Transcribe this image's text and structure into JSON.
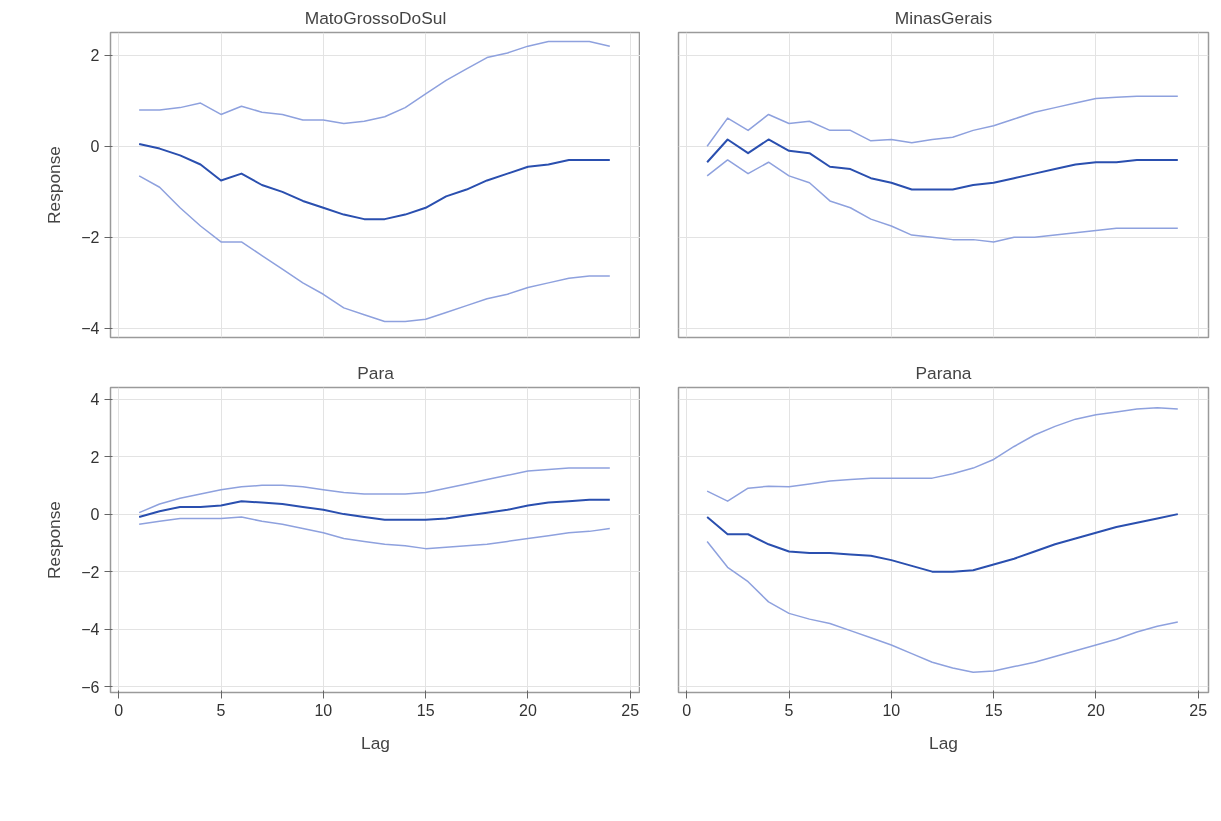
{
  "chart_data": [
    {
      "type": "line",
      "title": "MatoGrossoDoSul",
      "ylabel": "Response",
      "x": [
        1,
        2,
        3,
        4,
        5,
        6,
        7,
        8,
        9,
        10,
        11,
        12,
        13,
        14,
        15,
        16,
        17,
        18,
        19,
        20,
        21,
        22,
        23,
        24
      ],
      "xlim": [
        -0.4,
        25.5
      ],
      "xticks": [
        0,
        5,
        10,
        15,
        20,
        25
      ],
      "ylim": [
        -4.2,
        2.5
      ],
      "yticks": [
        -4,
        -2,
        0,
        2
      ],
      "grid": true,
      "tick_labels": "y",
      "marker": "none",
      "line_style": "solid",
      "series": [
        {
          "color": "#8ea1de",
          "values": [
            0.8,
            0.8,
            0.85,
            0.95,
            0.7,
            0.88,
            0.75,
            0.7,
            0.58,
            0.58,
            0.5,
            0.55,
            0.65,
            0.85,
            1.15,
            1.45,
            1.7,
            1.95,
            2.05,
            2.2,
            2.3,
            2.3,
            2.3,
            2.2
          ]
        },
        {
          "color": "#2a4faf",
          "values": [
            0.05,
            -0.05,
            -0.2,
            -0.4,
            -0.75,
            -0.6,
            -0.85,
            -1.0,
            -1.2,
            -1.35,
            -1.5,
            -1.6,
            -1.6,
            -1.5,
            -1.35,
            -1.1,
            -0.95,
            -0.75,
            -0.6,
            -0.45,
            -0.4,
            -0.3,
            -0.3,
            -0.3
          ]
        },
        {
          "color": "#8ea1de",
          "values": [
            -0.65,
            -0.9,
            -1.35,
            -1.75,
            -2.1,
            -2.1,
            -2.4,
            -2.7,
            -3.0,
            -3.25,
            -3.55,
            -3.7,
            -3.85,
            -3.85,
            -3.8,
            -3.65,
            -3.5,
            -3.35,
            -3.25,
            -3.1,
            -3.0,
            -2.9,
            -2.85,
            -2.85
          ]
        }
      ]
    },
    {
      "type": "line",
      "title": "MinasGerais",
      "x": [
        1,
        2,
        3,
        4,
        5,
        6,
        7,
        8,
        9,
        10,
        11,
        12,
        13,
        14,
        15,
        16,
        17,
        18,
        19,
        20,
        21,
        22,
        23,
        24
      ],
      "xlim": [
        -0.4,
        25.5
      ],
      "xticks": [
        0,
        5,
        10,
        15,
        20,
        25
      ],
      "ylim": [
        -4.2,
        2.5
      ],
      "yticks": [
        -4,
        -2,
        0,
        2
      ],
      "grid": true,
      "tick_labels": false,
      "marker": "none",
      "line_style": "solid",
      "series": [
        {
          "color": "#8ea1de",
          "values": [
            0.0,
            0.62,
            0.35,
            0.7,
            0.5,
            0.55,
            0.35,
            0.35,
            0.12,
            0.15,
            0.08,
            0.15,
            0.2,
            0.35,
            0.45,
            0.6,
            0.75,
            0.85,
            0.95,
            1.05,
            1.08,
            1.1,
            1.1,
            1.1
          ]
        },
        {
          "color": "#2a4faf",
          "values": [
            -0.35,
            0.15,
            -0.15,
            0.15,
            -0.1,
            -0.15,
            -0.45,
            -0.5,
            -0.7,
            -0.8,
            -0.95,
            -0.95,
            -0.95,
            -0.85,
            -0.8,
            -0.7,
            -0.6,
            -0.5,
            -0.4,
            -0.35,
            -0.35,
            -0.3,
            -0.3,
            -0.3
          ]
        },
        {
          "color": "#8ea1de",
          "values": [
            -0.65,
            -0.3,
            -0.6,
            -0.35,
            -0.65,
            -0.8,
            -1.2,
            -1.35,
            -1.6,
            -1.75,
            -1.95,
            -2.0,
            -2.05,
            -2.05,
            -2.1,
            -2.0,
            -2.0,
            -1.95,
            -1.9,
            -1.85,
            -1.8,
            -1.8,
            -1.8,
            -1.8
          ]
        }
      ]
    },
    {
      "type": "line",
      "title": "Para",
      "xlabel": "Lag",
      "ylabel": "Response",
      "x": [
        1,
        2,
        3,
        4,
        5,
        6,
        7,
        8,
        9,
        10,
        11,
        12,
        13,
        14,
        15,
        16,
        17,
        18,
        19,
        20,
        21,
        22,
        23,
        24
      ],
      "xlim": [
        -0.4,
        25.5
      ],
      "xticks": [
        0,
        5,
        10,
        15,
        20,
        25
      ],
      "ylim": [
        -6.2,
        4.4
      ],
      "yticks": [
        -6,
        -4,
        -2,
        0,
        2,
        4
      ],
      "grid": true,
      "marker": "none",
      "line_style": "solid",
      "series": [
        {
          "color": "#8ea1de",
          "values": [
            0.05,
            0.35,
            0.55,
            0.7,
            0.85,
            0.95,
            1.0,
            1.0,
            0.95,
            0.85,
            0.75,
            0.7,
            0.7,
            0.7,
            0.75,
            0.9,
            1.05,
            1.2,
            1.35,
            1.5,
            1.55,
            1.6,
            1.6,
            1.6
          ]
        },
        {
          "color": "#2a4faf",
          "values": [
            -0.1,
            0.1,
            0.25,
            0.25,
            0.3,
            0.45,
            0.4,
            0.35,
            0.25,
            0.15,
            0.0,
            -0.1,
            -0.2,
            -0.2,
            -0.2,
            -0.15,
            -0.05,
            0.05,
            0.15,
            0.3,
            0.4,
            0.45,
            0.5,
            0.5
          ]
        },
        {
          "color": "#8ea1de",
          "values": [
            -0.35,
            -0.25,
            -0.15,
            -0.15,
            -0.15,
            -0.1,
            -0.25,
            -0.35,
            -0.5,
            -0.65,
            -0.85,
            -0.95,
            -1.05,
            -1.1,
            -1.2,
            -1.15,
            -1.1,
            -1.05,
            -0.95,
            -0.85,
            -0.75,
            -0.65,
            -0.6,
            -0.5
          ]
        }
      ]
    },
    {
      "type": "line",
      "title": "Parana",
      "xlabel": "Lag",
      "x": [
        1,
        2,
        3,
        4,
        5,
        6,
        7,
        8,
        9,
        10,
        11,
        12,
        13,
        14,
        15,
        16,
        17,
        18,
        19,
        20,
        21,
        22,
        23,
        24
      ],
      "xlim": [
        -0.4,
        25.5
      ],
      "xticks": [
        0,
        5,
        10,
        15,
        20,
        25
      ],
      "ylim": [
        -6.2,
        4.4
      ],
      "yticks": [
        -6,
        -4,
        -2,
        0,
        2,
        4
      ],
      "grid": true,
      "tick_labels": "x",
      "marker": "none",
      "line_style": "solid",
      "series": [
        {
          "color": "#8ea1de",
          "values": [
            0.8,
            0.45,
            0.9,
            0.97,
            0.95,
            1.05,
            1.15,
            1.2,
            1.25,
            1.25,
            1.25,
            1.25,
            1.4,
            1.6,
            1.9,
            2.35,
            2.75,
            3.05,
            3.3,
            3.45,
            3.55,
            3.65,
            3.7,
            3.65
          ]
        },
        {
          "color": "#2a4faf",
          "values": [
            -0.1,
            -0.7,
            -0.7,
            -1.05,
            -1.3,
            -1.35,
            -1.35,
            -1.4,
            -1.45,
            -1.6,
            -1.8,
            -2.0,
            -2.0,
            -1.95,
            -1.75,
            -1.55,
            -1.3,
            -1.05,
            -0.85,
            -0.65,
            -0.45,
            -0.3,
            -0.15,
            0.0
          ]
        },
        {
          "color": "#8ea1de",
          "values": [
            -0.95,
            -1.85,
            -2.35,
            -3.05,
            -3.45,
            -3.65,
            -3.8,
            -4.05,
            -4.3,
            -4.55,
            -4.85,
            -5.15,
            -5.35,
            -5.5,
            -5.45,
            -5.3,
            -5.15,
            -4.95,
            -4.75,
            -4.55,
            -4.35,
            -4.1,
            -3.9,
            -3.75
          ]
        }
      ]
    }
  ]
}
